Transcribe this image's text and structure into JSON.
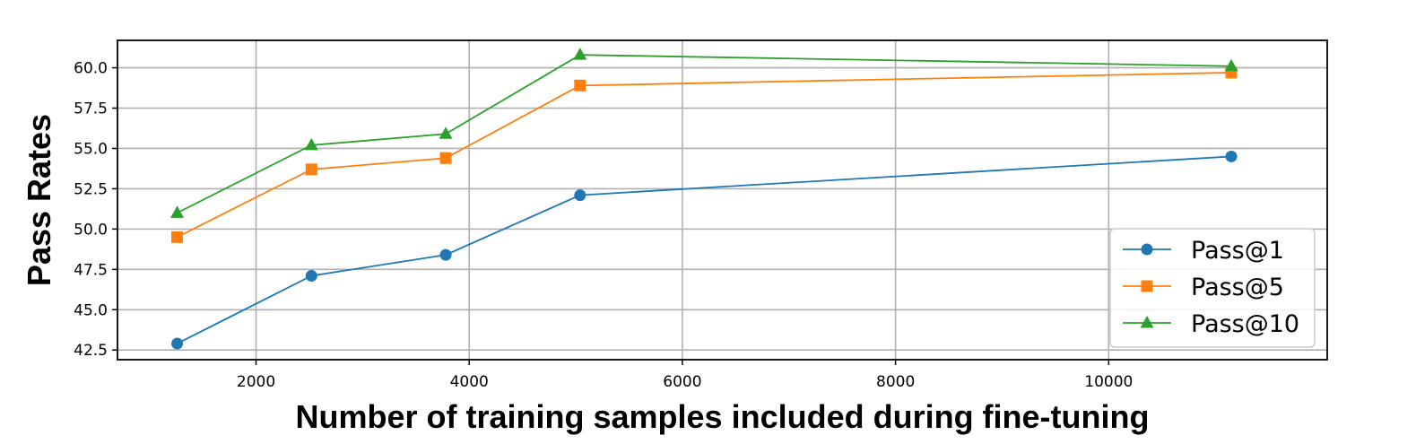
{
  "chart_data": {
    "type": "line",
    "title": "",
    "xlabel": "Number of training samples included during fine-tuning",
    "ylabel": "Pass Rates",
    "x": [
      1260,
      2520,
      3780,
      5040,
      11150
    ],
    "xlim": [
      700,
      12050
    ],
    "ylim": [
      41.9,
      61.7
    ],
    "xticks": [
      2000,
      4000,
      6000,
      8000,
      10000
    ],
    "xtick_labels": [
      "2000",
      "4000",
      "6000",
      "8000",
      "10000"
    ],
    "yticks": [
      42.5,
      45.0,
      47.5,
      50.0,
      52.5,
      55.0,
      57.5,
      60.0
    ],
    "ytick_labels": [
      "42.5",
      "45.0",
      "47.5",
      "50.0",
      "52.5",
      "55.0",
      "57.5",
      "60.0"
    ],
    "grid": true,
    "legend_position": "lower-right",
    "series": [
      {
        "name": "Pass@1",
        "values": [
          42.9,
          47.1,
          48.4,
          52.1,
          54.5
        ],
        "color": "#1f77b4",
        "marker": "circle"
      },
      {
        "name": "Pass@5",
        "values": [
          49.5,
          53.7,
          54.4,
          58.9,
          59.7
        ],
        "color": "#ff7f0e",
        "marker": "square"
      },
      {
        "name": "Pass@10",
        "values": [
          51.0,
          55.2,
          55.9,
          60.8,
          60.1
        ],
        "color": "#2ca02c",
        "marker": "triangle"
      }
    ]
  }
}
